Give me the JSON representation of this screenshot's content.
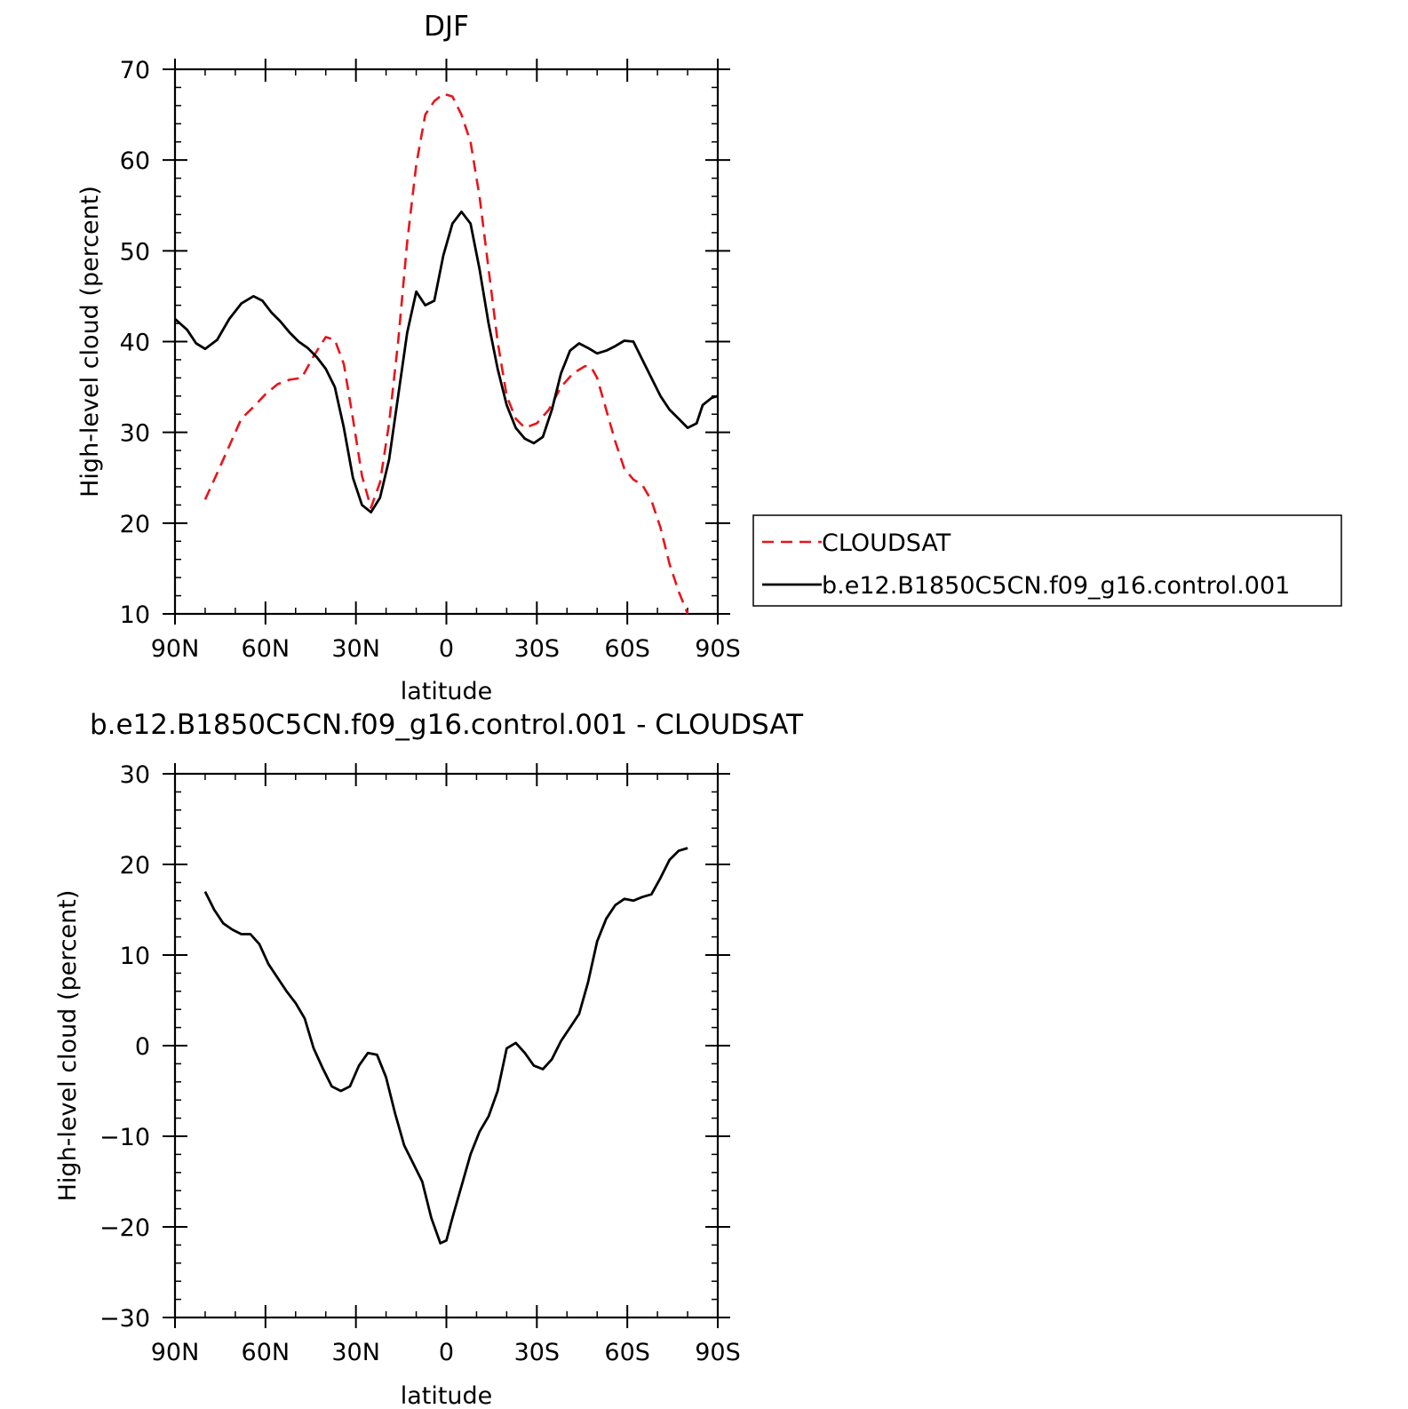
{
  "chart_data": [
    {
      "type": "line",
      "title": "DJF",
      "xlabel": "latitude",
      "ylabel": "High-level cloud (percent)",
      "xlim": [
        90,
        -90
      ],
      "ylim": [
        10,
        70
      ],
      "xticks": [
        90,
        60,
        30,
        0,
        -30,
        -60,
        -90
      ],
      "xtick_labels": [
        "90N",
        "60N",
        "30N",
        "0",
        "30S",
        "60S",
        "90S"
      ],
      "yticks": [
        10,
        20,
        30,
        40,
        50,
        60,
        70
      ],
      "ytick_labels": [
        "10",
        "20",
        "30",
        "40",
        "50",
        "60",
        "70"
      ],
      "grid": false,
      "legend_position": "right",
      "series": [
        {
          "name": "CLOUDSAT",
          "color": "#e8141c",
          "dash": "dashed",
          "x": [
            80,
            76,
            72,
            68,
            64,
            60,
            56,
            52,
            48,
            44,
            40,
            37,
            34,
            31,
            28,
            25,
            22,
            19,
            16,
            13,
            10,
            7,
            4,
            1,
            -2,
            -5,
            -8,
            -11,
            -14,
            -17,
            -20,
            -23,
            -26,
            -30,
            -34,
            -38,
            -42,
            -46,
            -48,
            -50,
            -53,
            -56,
            -59,
            -62,
            -65,
            -68,
            -71,
            -74,
            -77,
            -80
          ],
          "y": [
            22.6,
            25.5,
            28.5,
            31.5,
            32.8,
            34.2,
            35.3,
            35.8,
            36.0,
            38.4,
            40.5,
            40.2,
            37.5,
            31.5,
            25.2,
            21.7,
            24.5,
            31.0,
            40.0,
            51.0,
            59.5,
            65.0,
            66.5,
            67.3,
            67.0,
            65.0,
            62.0,
            56.0,
            48.0,
            40.0,
            34.0,
            31.5,
            30.5,
            31.0,
            32.5,
            35.0,
            36.5,
            37.3,
            37.2,
            36.0,
            32.5,
            29.0,
            26.0,
            24.8,
            24.2,
            22.5,
            19.5,
            15.5,
            12.5,
            10.0
          ]
        },
        {
          "name": "b.e12.B1850C5CN.f09_g16.control.001",
          "color": "#000000",
          "dash": "solid",
          "x": [
            90,
            86,
            83,
            80,
            76,
            72,
            68,
            64,
            61,
            58,
            55,
            52,
            49,
            46,
            43,
            40,
            37,
            34,
            31,
            28,
            25,
            22,
            19,
            16,
            13,
            10,
            7,
            4,
            1,
            -2,
            -5,
            -8,
            -11,
            -14,
            -17,
            -20,
            -23,
            -26,
            -29,
            -32,
            -35,
            -38,
            -41,
            -44,
            -47,
            -50,
            -53,
            -56,
            -59,
            -62,
            -65,
            -68,
            -71,
            -74,
            -77,
            -80,
            -83,
            -85,
            -88,
            -90
          ],
          "y": [
            42.5,
            41.3,
            39.8,
            39.2,
            40.2,
            42.5,
            44.2,
            45.0,
            44.5,
            43.2,
            42.2,
            41.0,
            40.0,
            39.3,
            38.3,
            37.0,
            35.0,
            30.5,
            25.0,
            22.0,
            21.2,
            22.8,
            27.0,
            34.0,
            41.0,
            45.5,
            44.0,
            44.5,
            49.5,
            53.0,
            54.3,
            53.0,
            48.0,
            42.0,
            37.0,
            33.0,
            30.5,
            29.3,
            28.8,
            29.5,
            32.5,
            36.5,
            39.0,
            39.8,
            39.3,
            38.7,
            39.0,
            39.5,
            40.1,
            40.0,
            38.0,
            36.0,
            34.0,
            32.5,
            31.5,
            30.5,
            31.0,
            33.0,
            33.8,
            34.0
          ]
        }
      ]
    },
    {
      "type": "line",
      "title": "b.e12.B1850C5CN.f09_g16.control.001 - CLOUDSAT",
      "xlabel": "latitude",
      "ylabel": "High-level cloud (percent)",
      "xlim": [
        90,
        -90
      ],
      "ylim": [
        -30,
        30
      ],
      "xticks": [
        90,
        60,
        30,
        0,
        -30,
        -60,
        -90
      ],
      "xtick_labels": [
        "90N",
        "60N",
        "30N",
        "0",
        "30S",
        "60S",
        "90S"
      ],
      "yticks": [
        -30,
        -20,
        -10,
        0,
        10,
        20,
        30
      ],
      "ytick_labels": [
        "−30",
        "−20",
        "−10",
        "0",
        "10",
        "20",
        "30"
      ],
      "grid": false,
      "series": [
        {
          "color": "#000000",
          "dash": "solid",
          "x": [
            80,
            77,
            74,
            71,
            68,
            65,
            62,
            59,
            56,
            53,
            50,
            47,
            44,
            41,
            38,
            35,
            32,
            29,
            26,
            23,
            20,
            17,
            14,
            11,
            8,
            5,
            2,
            0,
            -2,
            -5,
            -8,
            -11,
            -14,
            -17,
            -20,
            -23,
            -26,
            -29,
            -32,
            -35,
            -38,
            -41,
            -44,
            -47,
            -50,
            -53,
            -56,
            -59,
            -62,
            -65,
            -68,
            -71,
            -74,
            -77,
            -80
          ],
          "y": [
            17.0,
            15.0,
            13.5,
            12.8,
            12.3,
            12.3,
            11.2,
            9.0,
            7.5,
            6.0,
            4.7,
            3.0,
            -0.3,
            -2.5,
            -4.5,
            -5.0,
            -4.5,
            -2.2,
            -0.8,
            -1.0,
            -3.5,
            -7.5,
            -11.0,
            -13.0,
            -15.0,
            -19.0,
            -21.8,
            -21.5,
            -19.0,
            -15.5,
            -12.0,
            -9.5,
            -7.8,
            -5.0,
            -0.3,
            0.3,
            -0.8,
            -2.2,
            -2.6,
            -1.5,
            0.5,
            2.0,
            3.5,
            7.0,
            11.5,
            14.0,
            15.5,
            16.2,
            16.0,
            16.4,
            16.7,
            18.5,
            20.5,
            21.5,
            21.8
          ]
        }
      ]
    }
  ]
}
